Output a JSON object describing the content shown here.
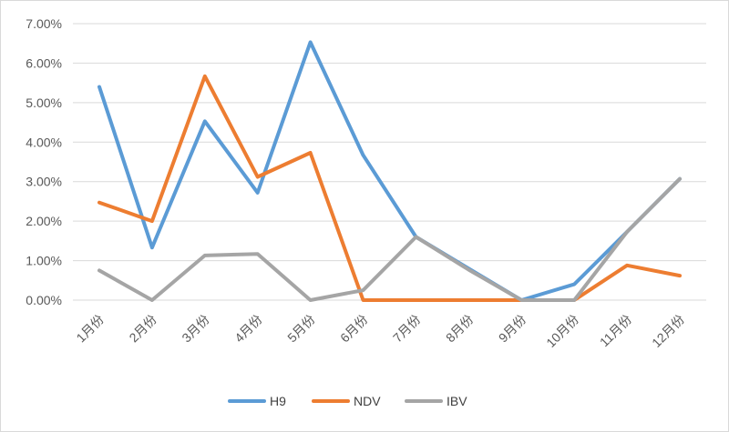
{
  "chart_data": {
    "type": "line",
    "title": "",
    "xlabel": "",
    "ylabel": "",
    "categories": [
      "1月份",
      "2月份",
      "3月份",
      "4月份",
      "5月份",
      "6月份",
      "7月份",
      "8月份",
      "9月份",
      "10月份",
      "11月份",
      "12月份"
    ],
    "y_ticks": [
      "0.00%",
      "1.00%",
      "2.00%",
      "3.00%",
      "4.00%",
      "5.00%",
      "6.00%",
      "7.00%"
    ],
    "ylim": [
      0,
      7
    ],
    "y_unit": "%",
    "grid": "horizontal",
    "legend_position": "bottom",
    "series": [
      {
        "name": "H9",
        "color": "#5b9bd5",
        "values": [
          5.4,
          1.33,
          4.53,
          2.72,
          6.53,
          3.67,
          1.6,
          0.8,
          0.0,
          0.4,
          1.73,
          3.07
        ]
      },
      {
        "name": "NDV",
        "color": "#ed7d31",
        "values": [
          2.47,
          2.0,
          5.67,
          3.12,
          3.73,
          0.0,
          0.0,
          0.0,
          0.0,
          0.0,
          0.88,
          0.62
        ]
      },
      {
        "name": "IBV",
        "color": "#a5a5a5",
        "values": [
          0.75,
          0.0,
          1.13,
          1.17,
          0.0,
          0.25,
          1.6,
          0.77,
          0.0,
          0.0,
          1.73,
          3.07
        ]
      }
    ]
  }
}
